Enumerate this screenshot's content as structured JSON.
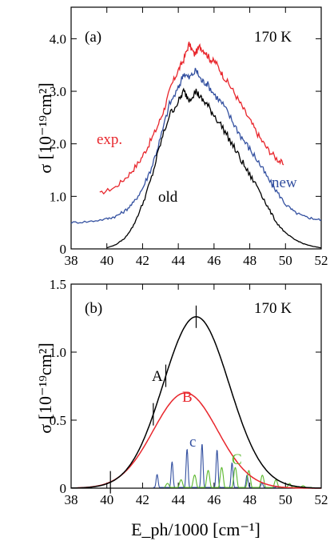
{
  "colors": {
    "exp": "#e8262c",
    "new": "#3350a0",
    "old": "#000000",
    "A": "#000000",
    "B": "#e8262c",
    "c": "#3350a0",
    "C": "#5cb82e"
  },
  "chart_data": [
    {
      "id": "panel-a",
      "type": "line",
      "panel_label": "(a)",
      "temperature_label": "170 K",
      "ylabel": "σ [10⁻¹⁹cm²]",
      "xlim": [
        38,
        52
      ],
      "ylim": [
        0,
        4.6
      ],
      "x_ticks": [
        "38",
        "40",
        "42",
        "44",
        "46",
        "48",
        "50",
        "52"
      ],
      "y_ticks": [
        "0",
        "1.0",
        "2.0",
        "3.0",
        "4.0"
      ],
      "series": [
        {
          "name": "exp.",
          "x": [
            39.6,
            40.5,
            41.2,
            41.8,
            42.3,
            42.8,
            43.2,
            43.6,
            44.0,
            44.3,
            44.6,
            44.9,
            45.2,
            45.5,
            45.8,
            46.1,
            46.5,
            47.0,
            47.5,
            48.0,
            48.5,
            49.0,
            49.5,
            49.9
          ],
          "y": [
            1.05,
            1.18,
            1.4,
            1.65,
            1.95,
            2.3,
            2.65,
            3.1,
            3.4,
            3.6,
            3.9,
            3.7,
            3.85,
            3.75,
            3.6,
            3.55,
            3.3,
            3.05,
            2.75,
            2.45,
            2.15,
            1.9,
            1.72,
            1.6
          ]
        },
        {
          "name": "new",
          "x": [
            38,
            39,
            40,
            40.5,
            41,
            41.5,
            42,
            42.5,
            43,
            43.5,
            44,
            44.3,
            44.6,
            45,
            45.3,
            45.6,
            46,
            46.5,
            47,
            47.5,
            48,
            48.5,
            49,
            49.5,
            50,
            50.5,
            51,
            51.5,
            52
          ],
          "y": [
            0.5,
            0.52,
            0.57,
            0.62,
            0.72,
            0.88,
            1.15,
            1.55,
            2.1,
            2.75,
            3.05,
            3.35,
            3.25,
            3.4,
            3.2,
            3.15,
            2.95,
            2.75,
            2.45,
            2.15,
            1.9,
            1.65,
            1.35,
            1.1,
            0.85,
            0.7,
            0.62,
            0.58,
            0.55
          ]
        },
        {
          "name": "old",
          "x": [
            40,
            40.5,
            41,
            41.5,
            42,
            42.5,
            43,
            43.5,
            44,
            44.3,
            44.6,
            45,
            45.3,
            45.6,
            46,
            46.5,
            47,
            47.5,
            48,
            48.5,
            49,
            49.5,
            50,
            50.5,
            51,
            51.5,
            52
          ],
          "y": [
            0.02,
            0.08,
            0.2,
            0.45,
            0.85,
            1.35,
            2.0,
            2.55,
            2.8,
            3.0,
            2.85,
            3.0,
            2.85,
            2.75,
            2.55,
            2.3,
            2.0,
            1.7,
            1.4,
            1.15,
            0.8,
            0.5,
            0.3,
            0.18,
            0.1,
            0.05,
            0.02
          ]
        }
      ],
      "annotations": [
        "exp.",
        "new",
        "old"
      ]
    },
    {
      "id": "panel-b",
      "type": "line",
      "panel_label": "(b)",
      "temperature_label": "170 K",
      "xlabel": "E_ph/1000 [cm⁻¹]",
      "ylabel": "σ [10⁻¹⁹cm²]",
      "xlim": [
        38,
        52
      ],
      "ylim": [
        0,
        1.5
      ],
      "x_ticks": [
        "38",
        "40",
        "42",
        "44",
        "46",
        "48",
        "50",
        "52"
      ],
      "y_ticks": [
        "0",
        "0.5",
        "1.0",
        "1.5"
      ],
      "series": [
        {
          "name": "A",
          "center": 45.0,
          "sigma": 1.85,
          "peak": 1.26
        },
        {
          "name": "B",
          "center": 44.4,
          "sigma": 1.8,
          "peak": 0.7
        },
        {
          "name": "c",
          "start": 42.6,
          "end": 51.0,
          "peak": 0.32
        },
        {
          "name": "C",
          "start": 43.2,
          "end": 51.5,
          "peak": 0.15
        }
      ],
      "vertical_markers_x": [
        40.2,
        42.6,
        43.3,
        45.0
      ],
      "annotations": [
        "A",
        "B",
        "c",
        "C"
      ]
    }
  ]
}
